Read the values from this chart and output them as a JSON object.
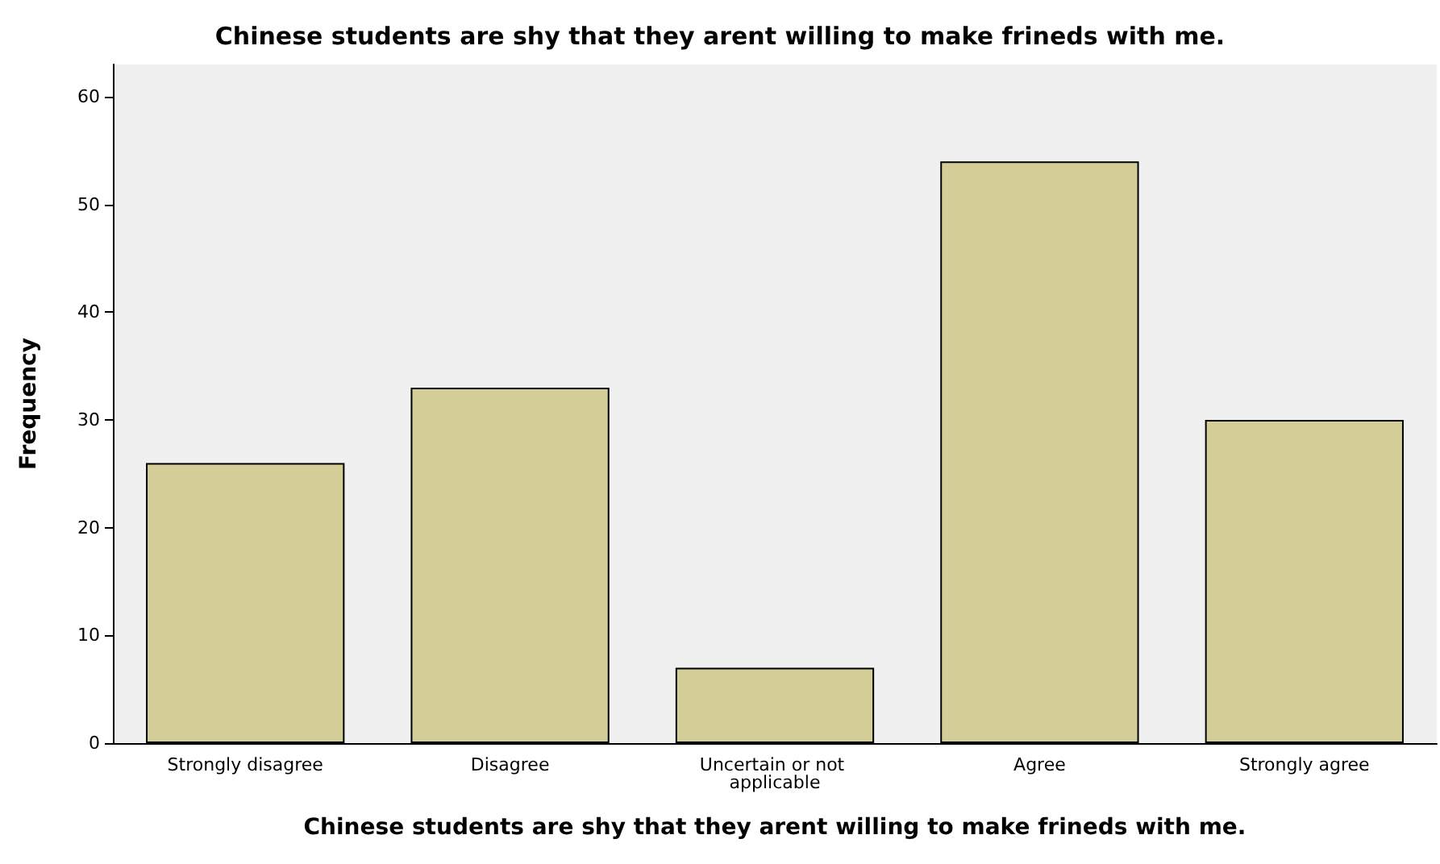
{
  "chart_data": {
    "type": "bar",
    "title": "Chinese students are shy that they arent willing to make frineds with me.",
    "xlabel": "Chinese students are shy that they arent willing to make frineds with me.",
    "ylabel": "Frequency",
    "categories": [
      "Strongly disagree",
      "Disagree",
      "Uncertain or not applicable",
      "Agree",
      "Strongly agree"
    ],
    "values": [
      26,
      33,
      7,
      54,
      30
    ],
    "color": "#d3ce97",
    "ylim": [
      0,
      63
    ],
    "yticks": [
      0,
      10,
      20,
      30,
      40,
      50,
      60
    ],
    "grid": false
  }
}
